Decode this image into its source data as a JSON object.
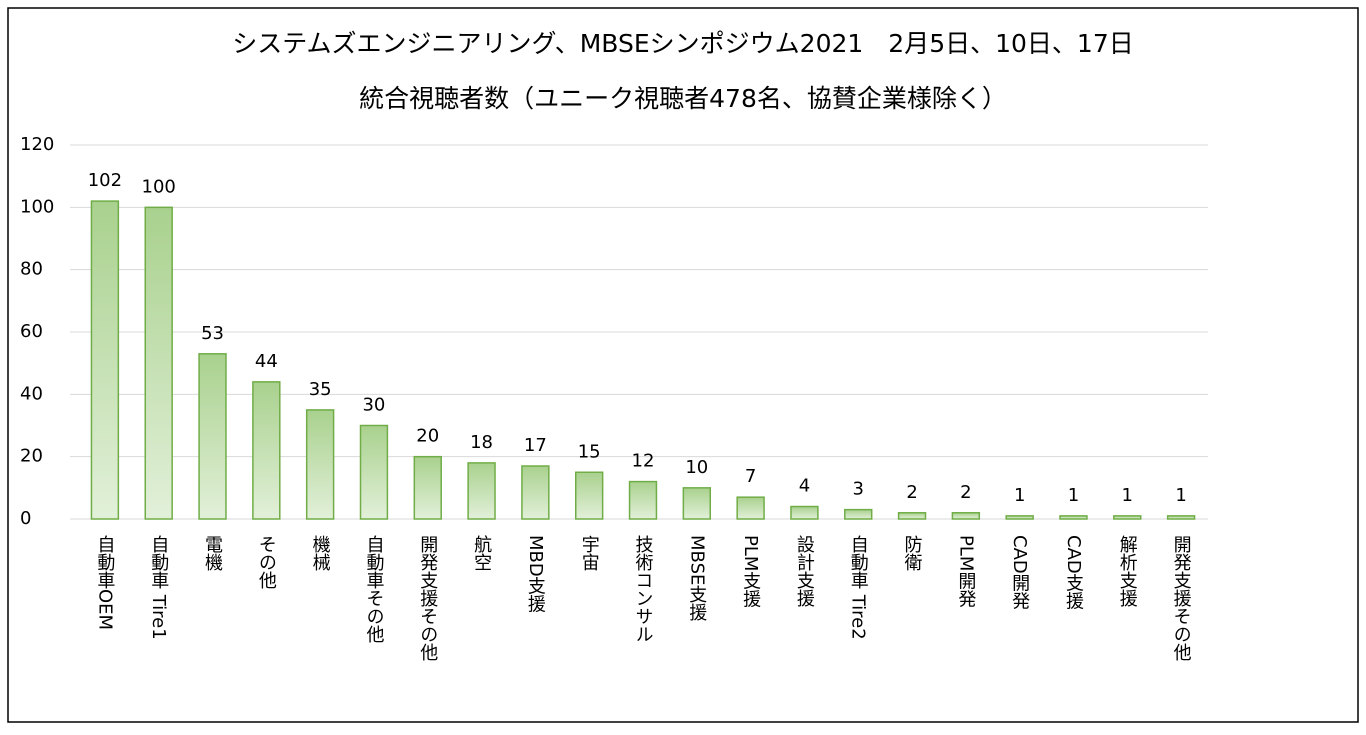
{
  "chart_data": {
    "type": "bar",
    "title": "システムズエンジニアリング、MBSEシンポジウム2021　2月5日、10日、17日",
    "subtitle": "統合視聴者数（ユニーク視聴者478名、協賛企業様除く）",
    "categories": [
      "自動車OEM",
      "自動車 Tire1",
      "電機",
      "その他",
      "機械",
      "自動車その他",
      "開発支援その他",
      "航空",
      "MBD支援",
      "宇宙",
      "技術コンサル",
      "MBSE支援",
      "PLM支援",
      "設計支援",
      "自動車 Tire2",
      "防衛",
      "PLM開発",
      "CAD開発",
      "CAD支援",
      "解析支援",
      "開発支援その他"
    ],
    "values": [
      102,
      100,
      53,
      44,
      35,
      30,
      20,
      18,
      17,
      15,
      12,
      10,
      7,
      4,
      3,
      2,
      2,
      1,
      1,
      1,
      1
    ],
    "color": "#70ad47",
    "ylim": [
      0,
      120
    ],
    "yticks": [
      0,
      20,
      40,
      60,
      80,
      100,
      120
    ],
    "grid": true
  }
}
